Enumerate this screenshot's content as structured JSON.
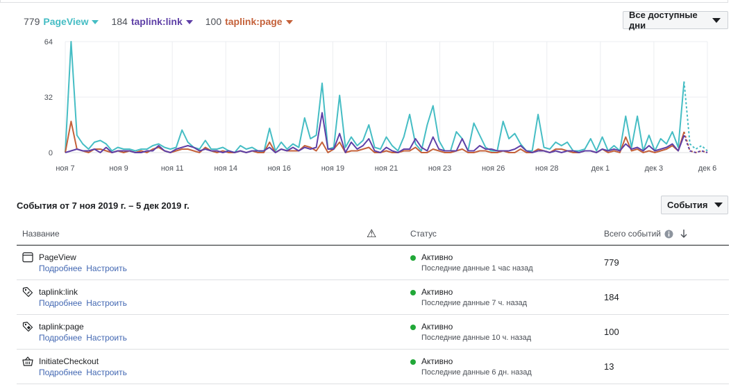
{
  "legend": [
    {
      "count": "779",
      "name": "PageView",
      "color": "#45bdc4"
    },
    {
      "count": "184",
      "name": "taplink:link",
      "color": "#5e3fa6"
    },
    {
      "count": "100",
      "name": "taplink:page",
      "color": "#c4613a"
    }
  ],
  "range_button": {
    "label": "Все доступные дни"
  },
  "chart_data": {
    "type": "line",
    "ylim": [
      0,
      64
    ],
    "yticks": [
      "0",
      "32",
      "64"
    ],
    "xticks": [
      "ноя 7",
      "ноя 9",
      "ноя 11",
      "ноя 14",
      "ноя 16",
      "ноя 19",
      "ноя 21",
      "ноя 23",
      "ноя 26",
      "ноя 28",
      "дек 1",
      "дек 3",
      "дек 6"
    ],
    "grid": true,
    "series": [
      {
        "name": "PageView",
        "color": "#45bdc4",
        "values": [
          0,
          64,
          10,
          5,
          2,
          6,
          7,
          5,
          1,
          3,
          2,
          2,
          1,
          2,
          2,
          4,
          5,
          3,
          2,
          3,
          13,
          6,
          3,
          2,
          7,
          2,
          2,
          3,
          1,
          0,
          4,
          2,
          3,
          1,
          0,
          14,
          1,
          6,
          2,
          5,
          3,
          20,
          8,
          10,
          40,
          2,
          3,
          33,
          3,
          9,
          4,
          7,
          16,
          3,
          2,
          9,
          4,
          1,
          9,
          22,
          5,
          1,
          16,
          27,
          7,
          1,
          1,
          12,
          8,
          1,
          17,
          10,
          3,
          1,
          1,
          18,
          8,
          11,
          5,
          1,
          1,
          22,
          3,
          2,
          6,
          4,
          6,
          1,
          1,
          2,
          8,
          1,
          9,
          1,
          4,
          1,
          21,
          3,
          21,
          1,
          10,
          1,
          8,
          5,
          12,
          3,
          41,
          5,
          2,
          4,
          1
        ]
      },
      {
        "name": "taplink:link",
        "color": "#5e3fa6",
        "values": [
          0,
          1,
          2,
          1,
          1,
          2,
          0,
          3,
          0,
          1,
          1,
          1,
          0,
          0,
          1,
          1,
          4,
          1,
          0,
          2,
          3,
          4,
          3,
          1,
          2,
          1,
          1,
          0,
          1,
          0,
          1,
          0,
          1,
          1,
          1,
          3,
          0,
          2,
          1,
          3,
          1,
          3,
          2,
          3,
          23,
          2,
          2,
          11,
          0,
          6,
          2,
          4,
          8,
          1,
          0,
          3,
          1,
          0,
          2,
          2,
          8,
          3,
          1,
          9,
          2,
          1,
          1,
          1,
          8,
          1,
          1,
          4,
          2,
          2,
          1,
          1,
          1,
          2,
          4,
          1,
          0,
          1,
          1,
          0,
          1,
          0,
          1,
          1,
          0,
          1,
          1,
          0,
          2,
          1,
          2,
          1,
          5,
          2,
          3,
          1,
          4,
          1,
          2,
          3,
          5,
          1,
          10,
          1,
          0,
          1,
          0
        ]
      },
      {
        "name": "taplink:page",
        "color": "#c4613a",
        "values": [
          0,
          18,
          2,
          1,
          0,
          2,
          2,
          1,
          0,
          1,
          0,
          1,
          0,
          1,
          0,
          2,
          3,
          1,
          0,
          1,
          2,
          2,
          1,
          0,
          3,
          1,
          0,
          1,
          0,
          0,
          1,
          0,
          1,
          0,
          0,
          6,
          0,
          2,
          1,
          1,
          1,
          4,
          3,
          1,
          6,
          0,
          2,
          6,
          0,
          1,
          1,
          2,
          3,
          0,
          0,
          1,
          0,
          0,
          1,
          1,
          3,
          0,
          0,
          2,
          1,
          0,
          0,
          1,
          2,
          0,
          0,
          1,
          1,
          0,
          0,
          1,
          0,
          0,
          2,
          0,
          0,
          2,
          1,
          0,
          2,
          2,
          1,
          0,
          0,
          1,
          1,
          0,
          2,
          0,
          1,
          0,
          9,
          1,
          2,
          0,
          1,
          0,
          1,
          2,
          4,
          1,
          12,
          1,
          0,
          1,
          0
        ]
      }
    ]
  },
  "events_header": {
    "title": "События от 7 ноя 2019 г. – 5 дек 2019 г.",
    "button_label": "События"
  },
  "table": {
    "columns": {
      "name": "Название",
      "warning": "⚠",
      "status": "Статус",
      "total": "Всего событий"
    },
    "rows": [
      {
        "icon": "browser-window-icon",
        "name": "PageView",
        "link_details": "Подробнее",
        "link_configure": "Настроить",
        "status": "Активно",
        "status_detail": "Последние данные 1 час назад",
        "count": "779",
        "status_color": "#21a838"
      },
      {
        "icon": "tag-link-icon",
        "name": "taplink:link",
        "link_details": "Подробнее",
        "link_configure": "Настроить",
        "status": "Активно",
        "status_detail": "Последние данные 7 ч. назад",
        "count": "184",
        "status_color": "#21a838"
      },
      {
        "icon": "tag-page-icon",
        "name": "taplink:page",
        "link_details": "Подробнее",
        "link_configure": "Настроить",
        "status": "Активно",
        "status_detail": "Последние данные 10 ч. назад",
        "count": "100",
        "status_color": "#21a838"
      },
      {
        "icon": "basket-icon",
        "name": "InitiateCheckout",
        "link_details": "Подробнее",
        "link_configure": "Настроить",
        "status": "Активно",
        "status_detail": "Последние данные 6 дн. назад",
        "count": "13",
        "status_color": "#21a838"
      }
    ]
  }
}
